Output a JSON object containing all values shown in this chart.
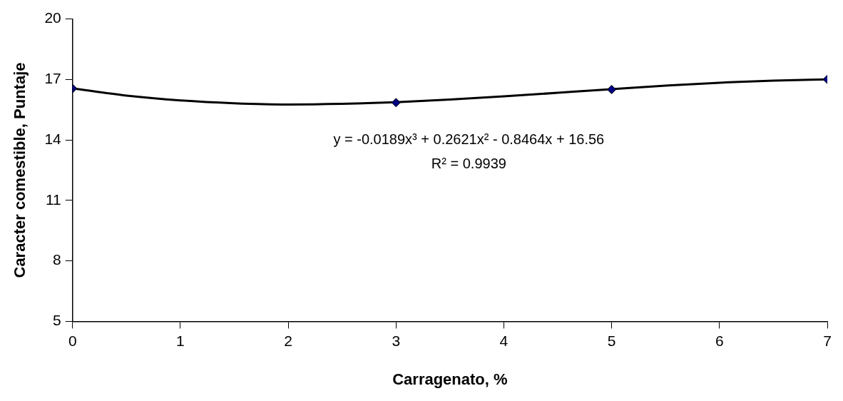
{
  "chart_data": {
    "type": "scatter",
    "xlabel": "Carragenato, %",
    "ylabel": "Caracter comestible, Puntaje",
    "xlim": [
      0,
      7
    ],
    "xticks": [
      0,
      1,
      2,
      3,
      4,
      5,
      6,
      7
    ],
    "ylim": [
      5,
      20
    ],
    "yticks": [
      5,
      8,
      11,
      14,
      17,
      20
    ],
    "grid": false,
    "legend": false,
    "series": [
      {
        "type": "line",
        "color": "#000000",
        "marker": "none",
        "line_style": "solid",
        "x": [
          0,
          0.5,
          1,
          1.5,
          2,
          2.5,
          3,
          3.5,
          4,
          4.5,
          5,
          5.5,
          6,
          6.5,
          7
        ],
        "values": [
          16.56,
          16.2,
          15.96,
          15.82,
          15.76,
          15.79,
          15.87,
          16.0,
          16.16,
          16.34,
          16.52,
          16.69,
          16.84,
          16.94,
          17.0
        ]
      },
      {
        "color": "#000080",
        "marker": "diamond",
        "x": [
          0,
          3,
          5,
          7
        ],
        "values": [
          16.55,
          15.85,
          16.5,
          17.0
        ]
      }
    ],
    "annotations": [
      "y = -0.0189x³ + 0.2621x² - 0.8464x + 16.56",
      "R² = 0.9939"
    ]
  }
}
